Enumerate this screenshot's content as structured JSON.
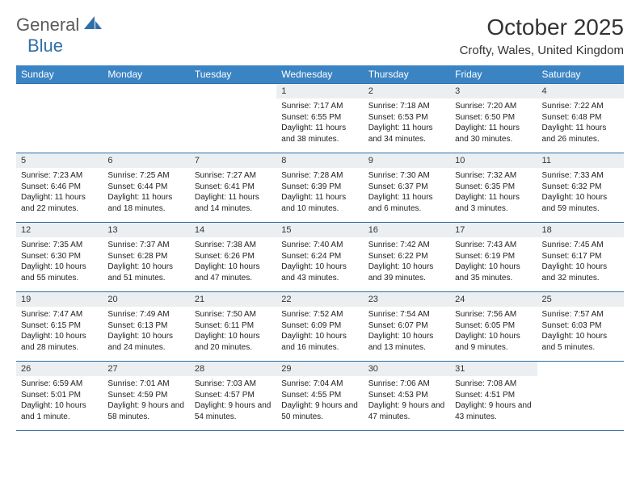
{
  "logo": {
    "part1": "General",
    "part2": "Blue"
  },
  "title": "October 2025",
  "location": "Crofty, Wales, United Kingdom",
  "colors": {
    "header_bg": "#3b84c4",
    "header_text": "#ffffff",
    "border": "#2f6fa8",
    "daynum_bg": "#eceff1",
    "logo_gray": "#5a5a5a",
    "logo_blue": "#2f6fa8"
  },
  "weekdays": [
    "Sunday",
    "Monday",
    "Tuesday",
    "Wednesday",
    "Thursday",
    "Friday",
    "Saturday"
  ],
  "weeks": [
    [
      null,
      null,
      null,
      {
        "n": "1",
        "sr": "7:17 AM",
        "ss": "6:55 PM",
        "dl": "11 hours and 38 minutes."
      },
      {
        "n": "2",
        "sr": "7:18 AM",
        "ss": "6:53 PM",
        "dl": "11 hours and 34 minutes."
      },
      {
        "n": "3",
        "sr": "7:20 AM",
        "ss": "6:50 PM",
        "dl": "11 hours and 30 minutes."
      },
      {
        "n": "4",
        "sr": "7:22 AM",
        "ss": "6:48 PM",
        "dl": "11 hours and 26 minutes."
      }
    ],
    [
      {
        "n": "5",
        "sr": "7:23 AM",
        "ss": "6:46 PM",
        "dl": "11 hours and 22 minutes."
      },
      {
        "n": "6",
        "sr": "7:25 AM",
        "ss": "6:44 PM",
        "dl": "11 hours and 18 minutes."
      },
      {
        "n": "7",
        "sr": "7:27 AM",
        "ss": "6:41 PM",
        "dl": "11 hours and 14 minutes."
      },
      {
        "n": "8",
        "sr": "7:28 AM",
        "ss": "6:39 PM",
        "dl": "11 hours and 10 minutes."
      },
      {
        "n": "9",
        "sr": "7:30 AM",
        "ss": "6:37 PM",
        "dl": "11 hours and 6 minutes."
      },
      {
        "n": "10",
        "sr": "7:32 AM",
        "ss": "6:35 PM",
        "dl": "11 hours and 3 minutes."
      },
      {
        "n": "11",
        "sr": "7:33 AM",
        "ss": "6:32 PM",
        "dl": "10 hours and 59 minutes."
      }
    ],
    [
      {
        "n": "12",
        "sr": "7:35 AM",
        "ss": "6:30 PM",
        "dl": "10 hours and 55 minutes."
      },
      {
        "n": "13",
        "sr": "7:37 AM",
        "ss": "6:28 PM",
        "dl": "10 hours and 51 minutes."
      },
      {
        "n": "14",
        "sr": "7:38 AM",
        "ss": "6:26 PM",
        "dl": "10 hours and 47 minutes."
      },
      {
        "n": "15",
        "sr": "7:40 AM",
        "ss": "6:24 PM",
        "dl": "10 hours and 43 minutes."
      },
      {
        "n": "16",
        "sr": "7:42 AM",
        "ss": "6:22 PM",
        "dl": "10 hours and 39 minutes."
      },
      {
        "n": "17",
        "sr": "7:43 AM",
        "ss": "6:19 PM",
        "dl": "10 hours and 35 minutes."
      },
      {
        "n": "18",
        "sr": "7:45 AM",
        "ss": "6:17 PM",
        "dl": "10 hours and 32 minutes."
      }
    ],
    [
      {
        "n": "19",
        "sr": "7:47 AM",
        "ss": "6:15 PM",
        "dl": "10 hours and 28 minutes."
      },
      {
        "n": "20",
        "sr": "7:49 AM",
        "ss": "6:13 PM",
        "dl": "10 hours and 24 minutes."
      },
      {
        "n": "21",
        "sr": "7:50 AM",
        "ss": "6:11 PM",
        "dl": "10 hours and 20 minutes."
      },
      {
        "n": "22",
        "sr": "7:52 AM",
        "ss": "6:09 PM",
        "dl": "10 hours and 16 minutes."
      },
      {
        "n": "23",
        "sr": "7:54 AM",
        "ss": "6:07 PM",
        "dl": "10 hours and 13 minutes."
      },
      {
        "n": "24",
        "sr": "7:56 AM",
        "ss": "6:05 PM",
        "dl": "10 hours and 9 minutes."
      },
      {
        "n": "25",
        "sr": "7:57 AM",
        "ss": "6:03 PM",
        "dl": "10 hours and 5 minutes."
      }
    ],
    [
      {
        "n": "26",
        "sr": "6:59 AM",
        "ss": "5:01 PM",
        "dl": "10 hours and 1 minute."
      },
      {
        "n": "27",
        "sr": "7:01 AM",
        "ss": "4:59 PM",
        "dl": "9 hours and 58 minutes."
      },
      {
        "n": "28",
        "sr": "7:03 AM",
        "ss": "4:57 PM",
        "dl": "9 hours and 54 minutes."
      },
      {
        "n": "29",
        "sr": "7:04 AM",
        "ss": "4:55 PM",
        "dl": "9 hours and 50 minutes."
      },
      {
        "n": "30",
        "sr": "7:06 AM",
        "ss": "4:53 PM",
        "dl": "9 hours and 47 minutes."
      },
      {
        "n": "31",
        "sr": "7:08 AM",
        "ss": "4:51 PM",
        "dl": "9 hours and 43 minutes."
      },
      null
    ]
  ],
  "labels": {
    "sunrise": "Sunrise:",
    "sunset": "Sunset:",
    "daylight": "Daylight:"
  }
}
